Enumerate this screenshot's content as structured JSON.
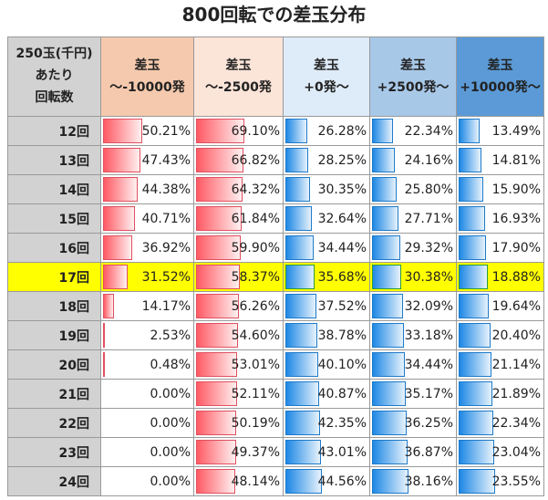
{
  "title": "800回転での差玉分布",
  "header": {
    "row_header": [
      "250玉(千円)",
      "あたり",
      "回転数"
    ],
    "columns": [
      {
        "line1": "差玉",
        "line2": "～-10000発",
        "color": "#f5c9ad",
        "bar": "neg"
      },
      {
        "line1": "差玉",
        "line2": "～-2500発",
        "color": "#fbe4d8",
        "bar": "neg"
      },
      {
        "line1": "差玉",
        "line2": "+0発～",
        "color": "#deebf8",
        "bar": "pos"
      },
      {
        "line1": "差玉",
        "line2": "+2500発～",
        "color": "#a8c8e8",
        "bar": "pos"
      },
      {
        "line1": "差玉",
        "line2": "+10000発～",
        "color": "#5b9ad6",
        "bar": "pos"
      }
    ]
  },
  "highlight_color": "#ffff00",
  "highlight_row": "17回",
  "rows": [
    {
      "label": "12回",
      "values": [
        "50.21%",
        "69.10%",
        "26.28%",
        "22.34%",
        "13.49%"
      ]
    },
    {
      "label": "13回",
      "values": [
        "47.43%",
        "66.82%",
        "28.25%",
        "24.16%",
        "14.81%"
      ]
    },
    {
      "label": "14回",
      "values": [
        "44.38%",
        "64.32%",
        "30.35%",
        "25.80%",
        "15.90%"
      ]
    },
    {
      "label": "15回",
      "values": [
        "40.71%",
        "61.84%",
        "32.64%",
        "27.71%",
        "16.93%"
      ]
    },
    {
      "label": "16回",
      "values": [
        "36.92%",
        "59.90%",
        "34.44%",
        "29.32%",
        "17.90%"
      ]
    },
    {
      "label": "17回",
      "values": [
        "31.52%",
        "58.37%",
        "35.68%",
        "30.38%",
        "18.88%"
      ]
    },
    {
      "label": "18回",
      "values": [
        "14.17%",
        "56.26%",
        "37.52%",
        "32.09%",
        "19.64%"
      ]
    },
    {
      "label": "19回",
      "values": [
        "2.53%",
        "54.60%",
        "38.78%",
        "33.18%",
        "20.40%"
      ]
    },
    {
      "label": "20回",
      "values": [
        "0.48%",
        "53.01%",
        "40.10%",
        "34.44%",
        "21.14%"
      ]
    },
    {
      "label": "21回",
      "values": [
        "0.00%",
        "52.11%",
        "40.87%",
        "35.17%",
        "21.89%"
      ]
    },
    {
      "label": "22回",
      "values": [
        "0.00%",
        "50.19%",
        "42.35%",
        "36.25%",
        "22.34%"
      ]
    },
    {
      "label": "23回",
      "values": [
        "0.00%",
        "49.37%",
        "43.01%",
        "36.87%",
        "23.04%"
      ]
    },
    {
      "label": "24回",
      "values": [
        "0.00%",
        "48.14%",
        "44.56%",
        "38.16%",
        "23.55%"
      ]
    }
  ]
}
